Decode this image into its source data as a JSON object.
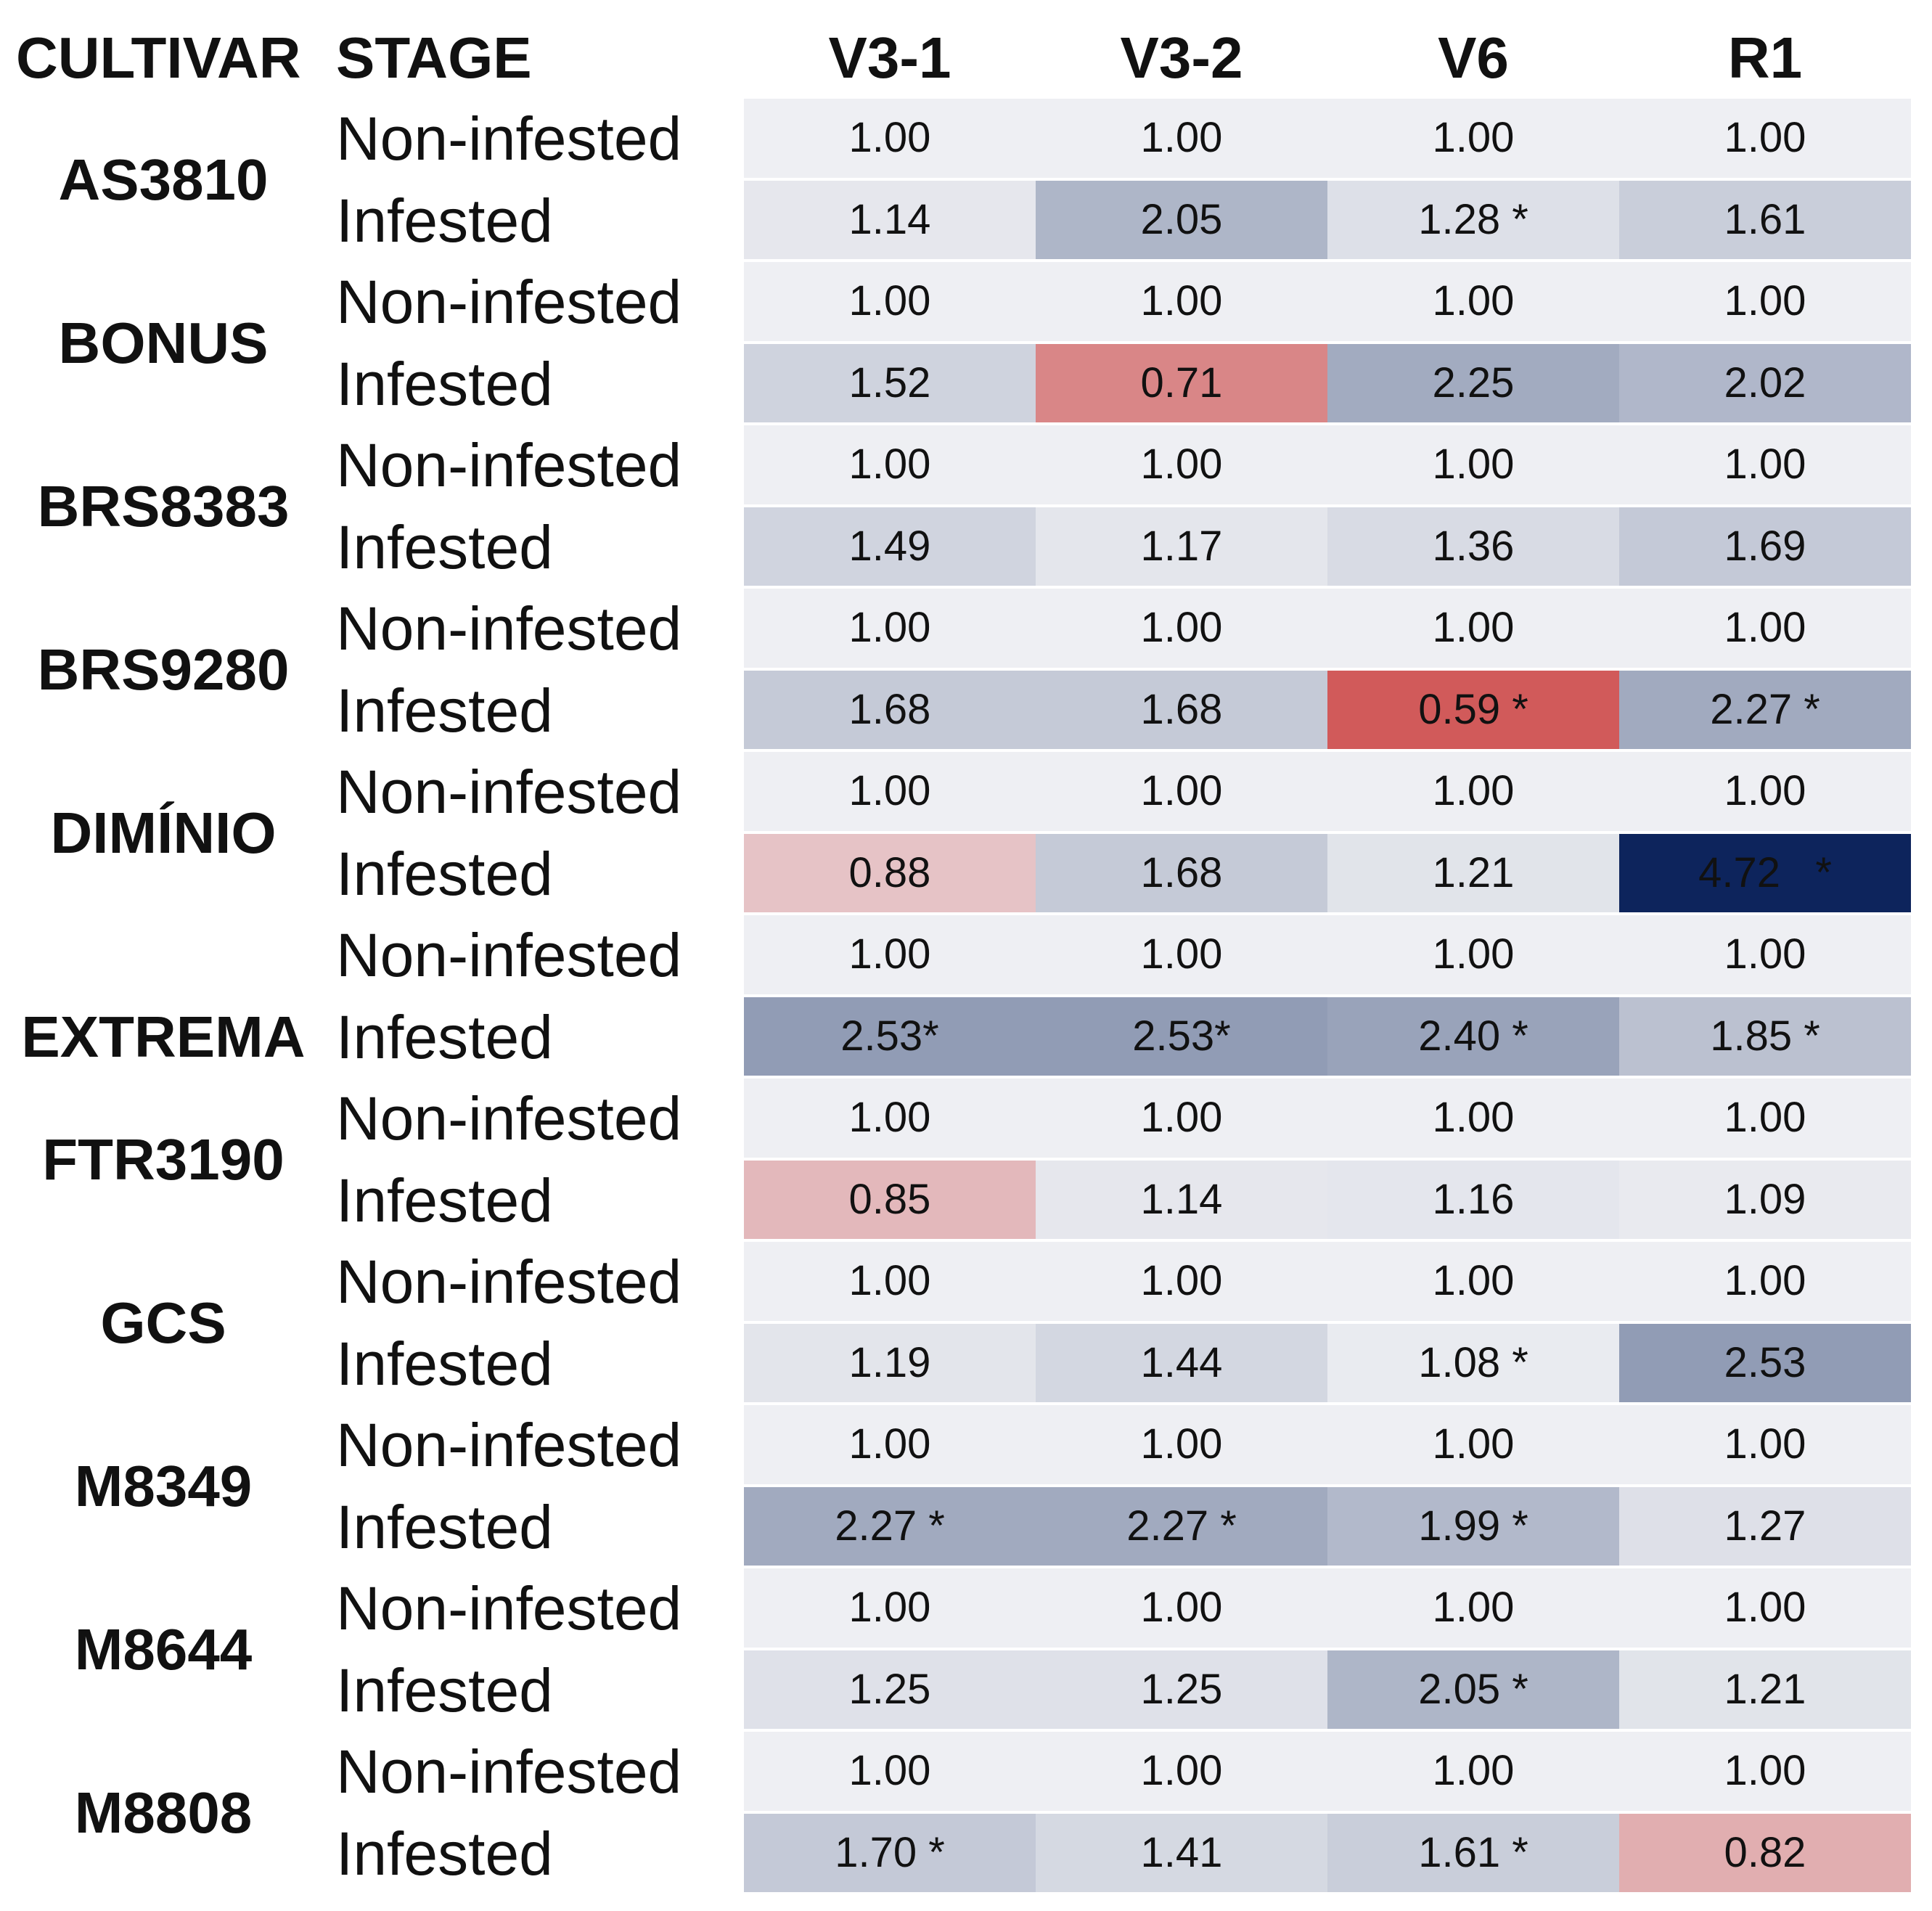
{
  "chart_data": {
    "type": "heatmap",
    "title": "",
    "header_cultivar": "CULTIVAR",
    "header_stage": "STAGE",
    "columns": [
      "V3-1",
      "V3-2",
      "V6",
      "R1"
    ],
    "stages": [
      "Non-infested",
      "Infested"
    ],
    "colors": {
      "neutral": "#eeeff3",
      "low_extreme": "#d15a5a",
      "high_extreme": "#0d245c"
    },
    "value_range": [
      0.59,
      4.72
    ],
    "cultivars": [
      {
        "name": "AS3810",
        "rows": [
          {
            "stage": "Non-infested",
            "cells": [
              {
                "value": 1.0,
                "label": "1.00"
              },
              {
                "value": 1.0,
                "label": "1.00"
              },
              {
                "value": 1.0,
                "label": "1.00"
              },
              {
                "value": 1.0,
                "label": "1.00"
              }
            ]
          },
          {
            "stage": "Infested",
            "cells": [
              {
                "value": 1.14,
                "label": "1.14"
              },
              {
                "value": 2.05,
                "label": "2.05"
              },
              {
                "value": 1.28,
                "label": "1.28 *"
              },
              {
                "value": 1.61,
                "label": "1.61"
              }
            ]
          }
        ]
      },
      {
        "name": "BONUS",
        "rows": [
          {
            "stage": "Non-infested",
            "cells": [
              {
                "value": 1.0,
                "label": "1.00"
              },
              {
                "value": 1.0,
                "label": "1.00"
              },
              {
                "value": 1.0,
                "label": "1.00"
              },
              {
                "value": 1.0,
                "label": "1.00"
              }
            ]
          },
          {
            "stage": "Infested",
            "cells": [
              {
                "value": 1.52,
                "label": "1.52"
              },
              {
                "value": 0.71,
                "label": "0.71"
              },
              {
                "value": 2.25,
                "label": "2.25"
              },
              {
                "value": 2.02,
                "label": "2.02"
              }
            ]
          }
        ]
      },
      {
        "name": "BRS8383",
        "rows": [
          {
            "stage": "Non-infested",
            "cells": [
              {
                "value": 1.0,
                "label": "1.00"
              },
              {
                "value": 1.0,
                "label": "1.00"
              },
              {
                "value": 1.0,
                "label": "1.00"
              },
              {
                "value": 1.0,
                "label": "1.00"
              }
            ]
          },
          {
            "stage": "Infested",
            "cells": [
              {
                "value": 1.49,
                "label": "1.49"
              },
              {
                "value": 1.17,
                "label": "1.17"
              },
              {
                "value": 1.36,
                "label": "1.36"
              },
              {
                "value": 1.69,
                "label": "1.69"
              }
            ]
          }
        ]
      },
      {
        "name": "BRS9280",
        "rows": [
          {
            "stage": "Non-infested",
            "cells": [
              {
                "value": 1.0,
                "label": "1.00"
              },
              {
                "value": 1.0,
                "label": "1.00"
              },
              {
                "value": 1.0,
                "label": "1.00"
              },
              {
                "value": 1.0,
                "label": "1.00"
              }
            ]
          },
          {
            "stage": "Infested",
            "cells": [
              {
                "value": 1.68,
                "label": "1.68"
              },
              {
                "value": 1.68,
                "label": "1.68"
              },
              {
                "value": 0.59,
                "label": "0.59 *"
              },
              {
                "value": 2.27,
                "label": "2.27 *"
              }
            ]
          }
        ]
      },
      {
        "name": "DIMÍNIO",
        "rows": [
          {
            "stage": "Non-infested",
            "cells": [
              {
                "value": 1.0,
                "label": "1.00"
              },
              {
                "value": 1.0,
                "label": "1.00"
              },
              {
                "value": 1.0,
                "label": "1.00"
              },
              {
                "value": 1.0,
                "label": "1.00"
              }
            ]
          },
          {
            "stage": "Infested",
            "cells": [
              {
                "value": 0.88,
                "label": "0.88"
              },
              {
                "value": 1.68,
                "label": "1.68"
              },
              {
                "value": 1.21,
                "label": "1.21"
              },
              {
                "value": 4.72,
                "label": "4.72   *"
              }
            ]
          }
        ]
      },
      {
        "name": "EXTREMA",
        "rows": [
          {
            "stage": "Non-infested",
            "cells": [
              {
                "value": 1.0,
                "label": "1.00"
              },
              {
                "value": 1.0,
                "label": "1.00"
              },
              {
                "value": 1.0,
                "label": "1.00"
              },
              {
                "value": 1.0,
                "label": "1.00"
              }
            ]
          },
          {
            "stage": "Infested",
            "cells": [
              {
                "value": 2.53,
                "label": "2.53*"
              },
              {
                "value": 2.53,
                "label": "2.53*"
              },
              {
                "value": 2.4,
                "label": "2.40 *"
              },
              {
                "value": 1.85,
                "label": "1.85 *"
              }
            ]
          }
        ]
      },
      {
        "name": "FTR3190",
        "rows": [
          {
            "stage": "Non-infested",
            "cells": [
              {
                "value": 1.0,
                "label": "1.00"
              },
              {
                "value": 1.0,
                "label": "1.00"
              },
              {
                "value": 1.0,
                "label": "1.00"
              },
              {
                "value": 1.0,
                "label": "1.00"
              }
            ]
          },
          {
            "stage": "Infested",
            "cells": [
              {
                "value": 0.85,
                "label": "0.85"
              },
              {
                "value": 1.14,
                "label": "1.14"
              },
              {
                "value": 1.16,
                "label": "1.16"
              },
              {
                "value": 1.09,
                "label": "1.09"
              }
            ]
          }
        ]
      },
      {
        "name": "GCS",
        "rows": [
          {
            "stage": "Non-infested",
            "cells": [
              {
                "value": 1.0,
                "label": "1.00"
              },
              {
                "value": 1.0,
                "label": "1.00"
              },
              {
                "value": 1.0,
                "label": "1.00"
              },
              {
                "value": 1.0,
                "label": "1.00"
              }
            ]
          },
          {
            "stage": "Infested",
            "cells": [
              {
                "value": 1.19,
                "label": "1.19"
              },
              {
                "value": 1.44,
                "label": "1.44"
              },
              {
                "value": 1.08,
                "label": "1.08 *"
              },
              {
                "value": 2.53,
                "label": "2.53"
              }
            ]
          }
        ]
      },
      {
        "name": "M8349",
        "rows": [
          {
            "stage": "Non-infested",
            "cells": [
              {
                "value": 1.0,
                "label": "1.00"
              },
              {
                "value": 1.0,
                "label": "1.00"
              },
              {
                "value": 1.0,
                "label": "1.00"
              },
              {
                "value": 1.0,
                "label": "1.00"
              }
            ]
          },
          {
            "stage": "Infested",
            "cells": [
              {
                "value": 2.27,
                "label": "2.27 *"
              },
              {
                "value": 2.27,
                "label": "2.27 *"
              },
              {
                "value": 1.99,
                "label": "1.99 *"
              },
              {
                "value": 1.27,
                "label": "1.27"
              }
            ]
          }
        ]
      },
      {
        "name": "M8644",
        "rows": [
          {
            "stage": "Non-infested",
            "cells": [
              {
                "value": 1.0,
                "label": "1.00"
              },
              {
                "value": 1.0,
                "label": "1.00"
              },
              {
                "value": 1.0,
                "label": "1.00"
              },
              {
                "value": 1.0,
                "label": "1.00"
              }
            ]
          },
          {
            "stage": "Infested",
            "cells": [
              {
                "value": 1.25,
                "label": "1.25"
              },
              {
                "value": 1.25,
                "label": "1.25"
              },
              {
                "value": 2.05,
                "label": "2.05 *"
              },
              {
                "value": 1.21,
                "label": "1.21"
              }
            ]
          }
        ]
      },
      {
        "name": "M8808",
        "rows": [
          {
            "stage": "Non-infested",
            "cells": [
              {
                "value": 1.0,
                "label": "1.00"
              },
              {
                "value": 1.0,
                "label": "1.00"
              },
              {
                "value": 1.0,
                "label": "1.00"
              },
              {
                "value": 1.0,
                "label": "1.00"
              }
            ]
          },
          {
            "stage": "Infested",
            "cells": [
              {
                "value": 1.7,
                "label": "1.70 *"
              },
              {
                "value": 1.41,
                "label": "1.41"
              },
              {
                "value": 1.61,
                "label": "1.61 *"
              },
              {
                "value": 0.82,
                "label": "0.82"
              }
            ]
          }
        ]
      }
    ]
  }
}
